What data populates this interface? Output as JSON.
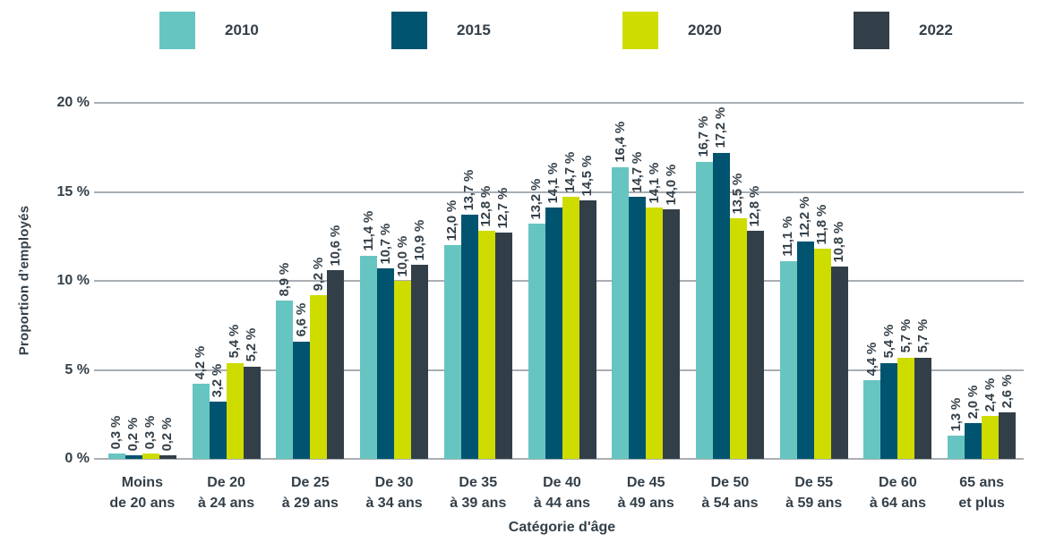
{
  "chart_data": {
    "type": "bar",
    "title": "",
    "xlabel": "Catégorie d'âge",
    "ylabel": "Proportion d’employés",
    "ylim": [
      0,
      20
    ],
    "grid": true,
    "legend_position": "top",
    "value_label_style": "comma decimal, narrow space before %",
    "yticks": [
      {
        "value": 0,
        "label": "0 %"
      },
      {
        "value": 5,
        "label": "5 %"
      },
      {
        "value": 10,
        "label": "10 %"
      },
      {
        "value": 15,
        "label": "15 %"
      },
      {
        "value": 20,
        "label": "20 %"
      }
    ],
    "categories": [
      {
        "line1": "Moins",
        "line2": "de 20 ans"
      },
      {
        "line1": "De 20",
        "line2": "à 24 ans"
      },
      {
        "line1": "De 25",
        "line2": "à 29 ans"
      },
      {
        "line1": "De 30",
        "line2": "à 34 ans"
      },
      {
        "line1": "De 35",
        "line2": "à 39 ans"
      },
      {
        "line1": "De 40",
        "line2": "à 44 ans"
      },
      {
        "line1": "De 45",
        "line2": "à 49 ans"
      },
      {
        "line1": "De 50",
        "line2": "à 54 ans"
      },
      {
        "line1": "De 55",
        "line2": "à 59 ans"
      },
      {
        "line1": "De 60",
        "line2": "à 64 ans"
      },
      {
        "line1": "65 ans",
        "line2": "et plus"
      }
    ],
    "series": [
      {
        "name": "2010",
        "color": "#66C5C1",
        "values": [
          0.3,
          4.2,
          8.9,
          11.4,
          12.0,
          13.2,
          16.4,
          16.7,
          11.1,
          4.4,
          1.3
        ]
      },
      {
        "name": "2015",
        "color": "#00546F",
        "values": [
          0.2,
          3.2,
          6.6,
          10.7,
          13.7,
          14.1,
          14.7,
          17.2,
          12.2,
          5.4,
          2.0
        ]
      },
      {
        "name": "2020",
        "color": "#CEDC00",
        "values": [
          0.3,
          5.4,
          9.2,
          10.0,
          12.8,
          14.7,
          14.1,
          13.5,
          11.8,
          5.7,
          2.4
        ]
      },
      {
        "name": "2022",
        "color": "#333F48",
        "values": [
          0.2,
          5.2,
          10.6,
          10.9,
          12.7,
          14.5,
          14.0,
          12.8,
          10.8,
          5.7,
          2.6
        ]
      }
    ],
    "colors": {
      "text": "#333F48",
      "gridline": "#A9AFB4",
      "background": "#FFFFFF"
    }
  }
}
